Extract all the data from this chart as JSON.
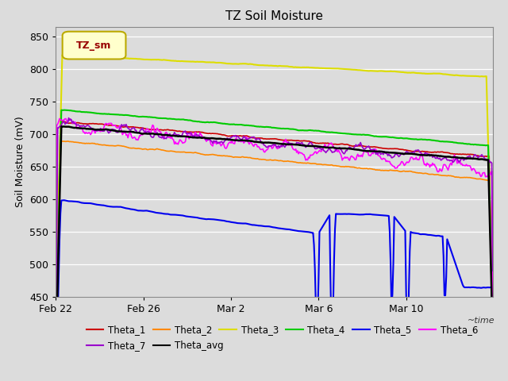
{
  "title": "TZ Soil Moisture",
  "time_label": "~time",
  "ylabel": "Soil Moisture (mV)",
  "ylim": [
    450,
    865
  ],
  "yticks": [
    450,
    500,
    550,
    600,
    650,
    700,
    750,
    800,
    850
  ],
  "background_color": "#dcdcdc",
  "plot_bg_color": "#dcdcdc",
  "legend_label": "TZ_sm",
  "legend_box_color": "#ffffcc",
  "legend_box_edge": "#bbaa00",
  "series_colors": {
    "Theta_1": "#cc0000",
    "Theta_2": "#ff8800",
    "Theta_3": "#dddd00",
    "Theta_4": "#00cc00",
    "Theta_5": "#0000ee",
    "Theta_6": "#ff00ff",
    "Theta_7": "#9900cc",
    "Theta_avg": "#000000"
  },
  "n_points": 480,
  "xtick_positions": [
    0,
    96,
    192,
    288,
    384
  ],
  "xtick_labels": [
    "Feb 22",
    "Feb 26",
    "Mar 2",
    "Mar 6",
    "Mar 10"
  ]
}
